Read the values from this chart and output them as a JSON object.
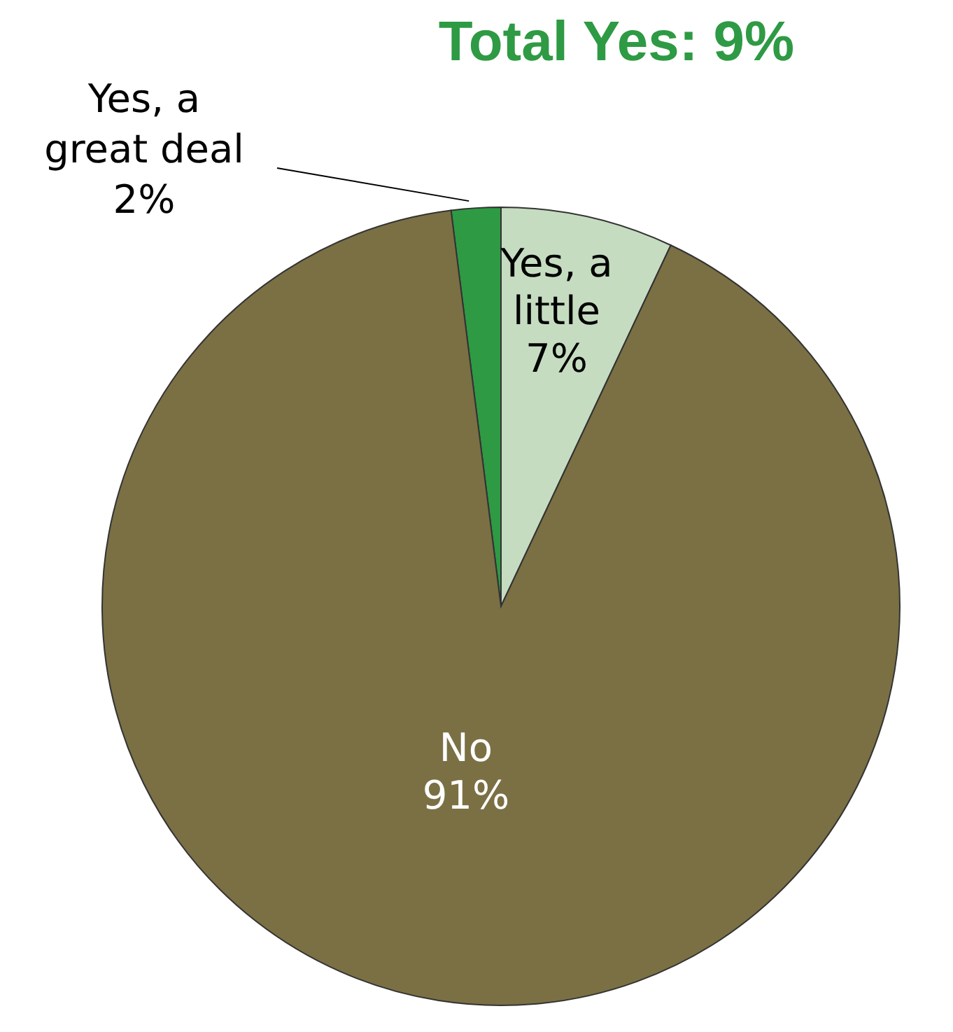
{
  "chart_data": {
    "type": "pie",
    "title": "Total Yes: 9%",
    "categories": [
      "Yes, a great deal",
      "Yes, a little",
      "No"
    ],
    "values": [
      2,
      7,
      91
    ],
    "value_labels": [
      "2%",
      "7%",
      "91%"
    ],
    "colors": [
      "#2e9a44",
      "#c5dcc0",
      "#7b7044"
    ]
  }
}
